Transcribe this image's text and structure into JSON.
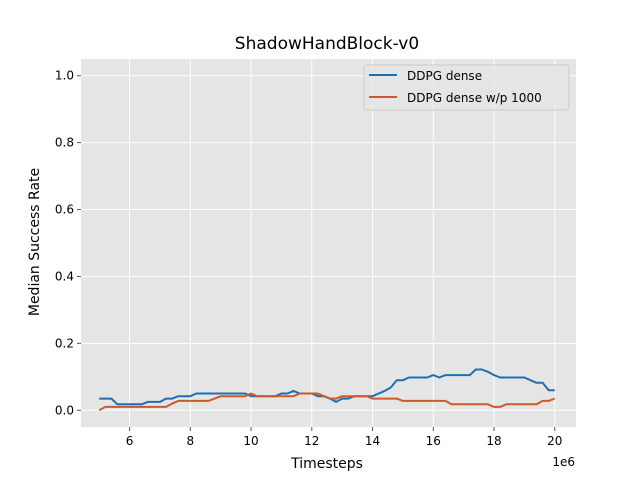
{
  "chart_data": {
    "type": "line",
    "title": "ShadowHandBlock-v0",
    "xlabel": "Timesteps",
    "ylabel": "Median Success Rate",
    "x_offset_label": "1e6",
    "xlim": [
      4.4,
      20.7
    ],
    "ylim": [
      -0.05,
      1.05
    ],
    "xticks": [
      6,
      8,
      10,
      12,
      14,
      16,
      18,
      20
    ],
    "yticks": [
      0.0,
      0.2,
      0.4,
      0.6,
      0.8,
      1.0
    ],
    "xtick_labels": [
      "6",
      "8",
      "10",
      "12",
      "14",
      "16",
      "18",
      "20"
    ],
    "ytick_labels": [
      "0.0",
      "0.2",
      "0.4",
      "0.6",
      "0.8",
      "1.0"
    ],
    "grid": true,
    "legend_position": "top-right",
    "series": [
      {
        "name": "DDPG dense",
        "color": "#1f6fb0",
        "x": [
          5.0,
          5.2,
          5.4,
          5.6,
          5.8,
          6.0,
          6.2,
          6.4,
          6.6,
          6.8,
          7.0,
          7.2,
          7.4,
          7.6,
          7.8,
          8.0,
          8.2,
          8.4,
          8.6,
          8.8,
          9.0,
          9.2,
          9.4,
          9.6,
          9.8,
          10.0,
          10.2,
          10.4,
          10.6,
          10.8,
          11.0,
          11.2,
          11.4,
          11.6,
          11.8,
          12.0,
          12.2,
          12.4,
          12.6,
          12.8,
          13.0,
          13.2,
          13.4,
          13.6,
          13.8,
          14.0,
          14.2,
          14.4,
          14.6,
          14.8,
          15.0,
          15.2,
          15.4,
          15.6,
          15.8,
          16.0,
          16.2,
          16.4,
          16.6,
          16.8,
          17.0,
          17.2,
          17.4,
          17.6,
          17.8,
          18.0,
          18.2,
          18.4,
          18.6,
          18.8,
          19.0,
          19.2,
          19.4,
          19.6,
          19.8,
          20.0
        ],
        "y": [
          0.035,
          0.035,
          0.035,
          0.018,
          0.018,
          0.018,
          0.018,
          0.018,
          0.025,
          0.025,
          0.025,
          0.035,
          0.035,
          0.042,
          0.042,
          0.042,
          0.05,
          0.05,
          0.05,
          0.05,
          0.05,
          0.05,
          0.05,
          0.05,
          0.05,
          0.042,
          0.042,
          0.042,
          0.042,
          0.042,
          0.05,
          0.05,
          0.058,
          0.05,
          0.05,
          0.05,
          0.042,
          0.042,
          0.035,
          0.025,
          0.035,
          0.035,
          0.042,
          0.042,
          0.042,
          0.042,
          0.05,
          0.058,
          0.068,
          0.09,
          0.09,
          0.098,
          0.098,
          0.098,
          0.098,
          0.105,
          0.098,
          0.105,
          0.105,
          0.105,
          0.105,
          0.105,
          0.122,
          0.122,
          0.115,
          0.105,
          0.098,
          0.098,
          0.098,
          0.098,
          0.098,
          0.09,
          0.082,
          0.082,
          0.06,
          0.06
        ]
      },
      {
        "name": "DDPG dense w/p 1000",
        "color": "#cc5a2a",
        "x": [
          5.0,
          5.2,
          5.4,
          5.6,
          5.8,
          6.0,
          6.2,
          6.4,
          6.6,
          6.8,
          7.0,
          7.2,
          7.4,
          7.6,
          7.8,
          8.0,
          8.2,
          8.4,
          8.6,
          8.8,
          9.0,
          9.2,
          9.4,
          9.6,
          9.8,
          10.0,
          10.2,
          10.4,
          10.6,
          10.8,
          11.0,
          11.2,
          11.4,
          11.6,
          11.8,
          12.0,
          12.2,
          12.4,
          12.6,
          12.8,
          13.0,
          13.2,
          13.4,
          13.6,
          13.8,
          14.0,
          14.2,
          14.4,
          14.6,
          14.8,
          15.0,
          15.2,
          15.4,
          15.6,
          15.8,
          16.0,
          16.2,
          16.4,
          16.6,
          16.8,
          17.0,
          17.2,
          17.4,
          17.6,
          17.8,
          18.0,
          18.2,
          18.4,
          18.6,
          18.8,
          19.0,
          19.2,
          19.4,
          19.6,
          19.8,
          20.0
        ],
        "y": [
          0.0,
          0.01,
          0.01,
          0.01,
          0.01,
          0.01,
          0.01,
          0.01,
          0.01,
          0.01,
          0.01,
          0.01,
          0.02,
          0.028,
          0.028,
          0.028,
          0.028,
          0.028,
          0.028,
          0.035,
          0.042,
          0.042,
          0.042,
          0.042,
          0.042,
          0.05,
          0.042,
          0.042,
          0.042,
          0.042,
          0.042,
          0.042,
          0.042,
          0.05,
          0.05,
          0.05,
          0.05,
          0.042,
          0.035,
          0.035,
          0.042,
          0.042,
          0.042,
          0.042,
          0.042,
          0.035,
          0.035,
          0.035,
          0.035,
          0.035,
          0.028,
          0.028,
          0.028,
          0.028,
          0.028,
          0.028,
          0.028,
          0.028,
          0.018,
          0.018,
          0.018,
          0.018,
          0.018,
          0.018,
          0.018,
          0.01,
          0.01,
          0.018,
          0.018,
          0.018,
          0.018,
          0.018,
          0.018,
          0.028,
          0.028,
          0.035
        ]
      }
    ]
  }
}
